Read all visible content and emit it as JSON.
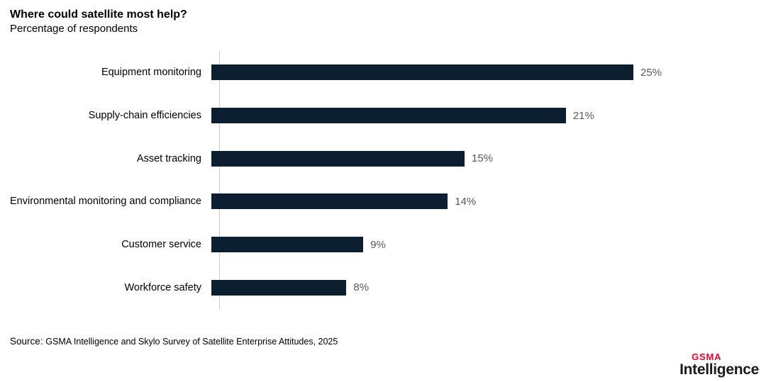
{
  "title": "Where could satellite most help?",
  "subtitle": "Percentage of respondents",
  "source": {
    "label": "Source:",
    "text": "GSMA Intelligence and Skylo Survey of Satellite Enterprise Attitudes, 2025"
  },
  "logo": {
    "top": "GSMA",
    "bottom": "Intelligence"
  },
  "colors": {
    "bar": "#0b1f30",
    "value_label": "#595959",
    "axis_line": "#c9c9c9",
    "logo_red": "#e4032e",
    "logo_black": "#1a1a1a"
  },
  "chart_data": {
    "type": "bar",
    "orientation": "horizontal",
    "title": "Where could satellite most help?",
    "subtitle": "Percentage of respondents",
    "categories": [
      "Equipment monitoring",
      "Supply-chain efficiencies",
      "Asset tracking",
      "Environmental monitoring and compliance",
      "Customer service",
      "Workforce safety"
    ],
    "values": [
      25,
      21,
      15,
      14,
      9,
      8
    ],
    "value_labels": [
      "25%",
      "21%",
      "15%",
      "14%",
      "9%",
      "8%"
    ],
    "unit": "%",
    "xlim": [
      0,
      31
    ],
    "grid": false,
    "legend": false,
    "bar_color": "#0b1f30"
  }
}
